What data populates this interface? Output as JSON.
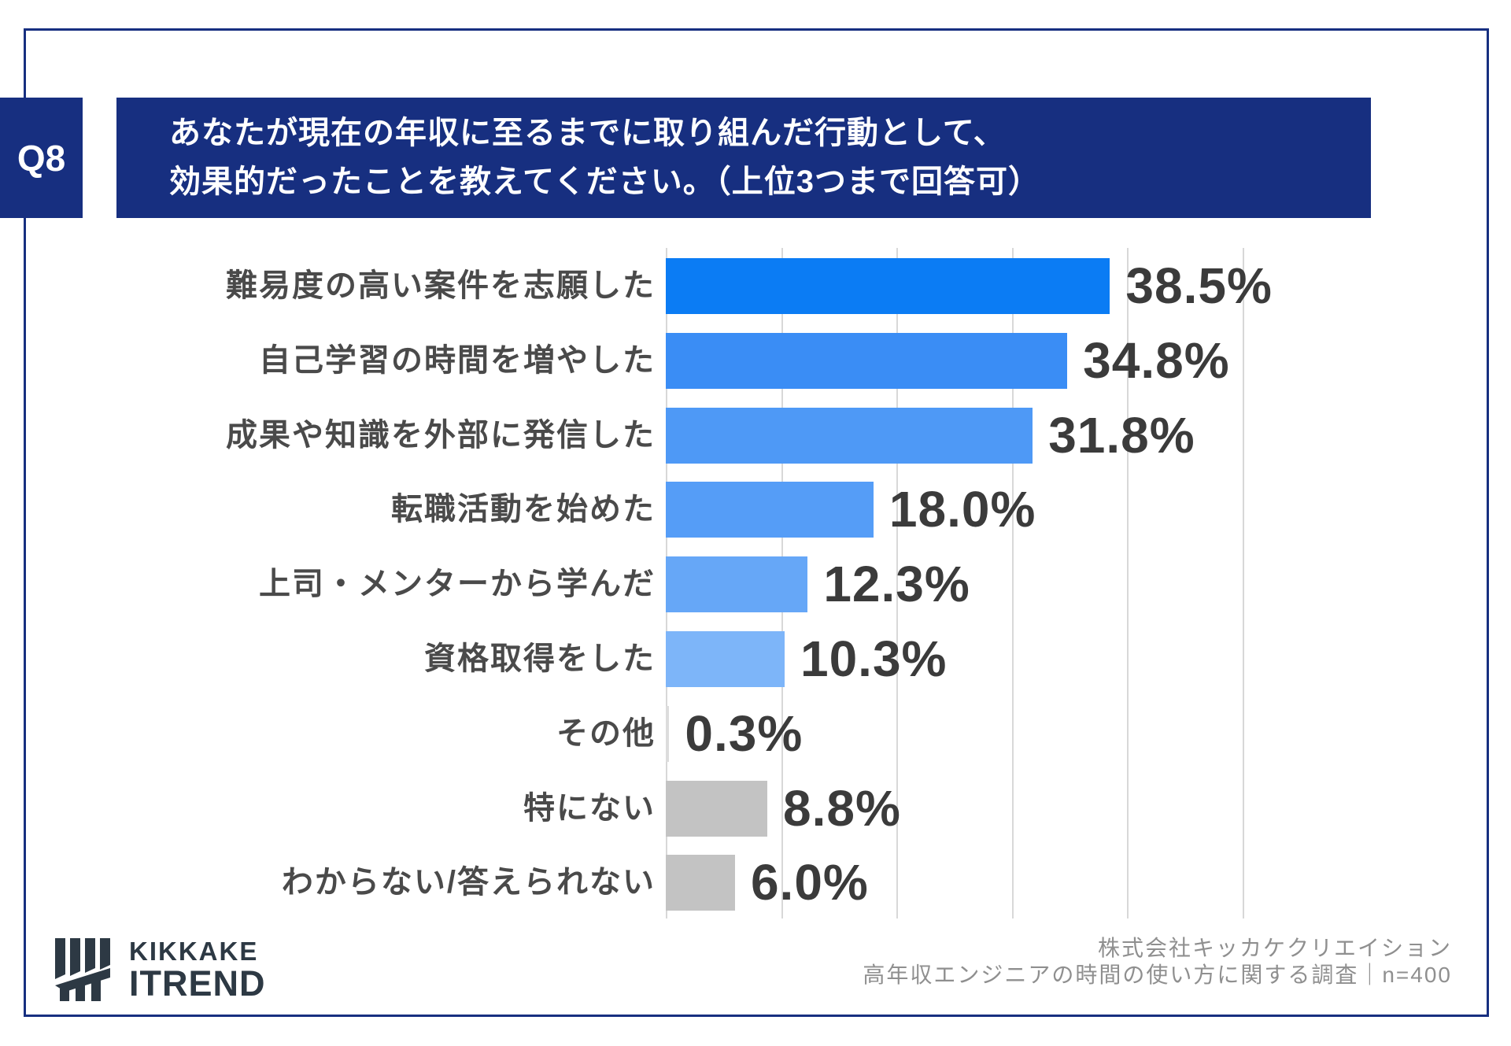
{
  "colors": {
    "navy": "#172f80",
    "grid": "#d8d8d8",
    "category_text": "#4a4a4a",
    "value_text": "#3b3b3b",
    "source_text": "#8f8f8f",
    "logo": "#2d3944"
  },
  "question": {
    "tag": "Q8",
    "title_line1": "あなたが現在の年収に至るまでに取り組んだ行動として、",
    "title_line2": "効果的だったことを教えてください。（上位3つまで回答可）"
  },
  "chart_data": {
    "type": "bar",
    "orientation": "horizontal",
    "title": "",
    "xlabel": "",
    "ylabel": "",
    "xlim": [
      0,
      50
    ],
    "gridline_step_pct": 10,
    "grid": true,
    "legend": false,
    "categories": [
      "難易度の高い案件を志願した",
      "自己学習の時間を増やした",
      "成果や知識を外部に発信した",
      "転職活動を始めた",
      "上司・メンターから学んだ",
      "資格取得をした",
      "その他",
      "特にない",
      "わからない/答えられない"
    ],
    "values": [
      38.5,
      34.8,
      31.8,
      18.0,
      12.3,
      10.3,
      0.3,
      8.8,
      6.0
    ],
    "value_labels": [
      "38.5%",
      "34.8%",
      "31.8%",
      "18.0%",
      "12.3%",
      "10.3%",
      "0.3%",
      "8.8%",
      "6.0%"
    ],
    "bar_colors": [
      "#0b7cf4",
      "#3a8df5",
      "#4e99f6",
      "#559df7",
      "#66a7f7",
      "#7db5f9",
      "#dcdcdc",
      "#c3c3c3",
      "#c3c3c3"
    ]
  },
  "footer": {
    "logo_line1": "KIKKAKE",
    "logo_line2": "ITREND",
    "source_line1": "株式会社キッカケクリエイション",
    "source_line2": "高年収エンジニアの時間の使い方に関する調査｜n=400"
  }
}
